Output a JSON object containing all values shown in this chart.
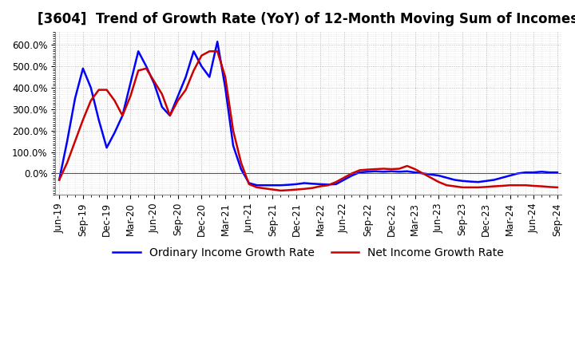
{
  "title": "[3604]  Trend of Growth Rate (YoY) of 12-Month Moving Sum of Incomes",
  "title_fontsize": 12,
  "background_color": "#ffffff",
  "plot_bg_color": "#ffffff",
  "grid_color": "#aaaaaa",
  "x_tick_labels": [
    "Jun-19",
    "Sep-19",
    "Dec-19",
    "Mar-20",
    "Jun-20",
    "Sep-20",
    "Dec-20",
    "Mar-21",
    "Jun-21",
    "Sep-21",
    "Dec-21",
    "Mar-22",
    "Jun-22",
    "Sep-22",
    "Dec-22",
    "Mar-23",
    "Jun-23",
    "Sep-23",
    "Dec-23",
    "Mar-24",
    "Jun-24",
    "Sep-24"
  ],
  "x_tick_positions": [
    0,
    3,
    6,
    9,
    12,
    15,
    18,
    21,
    24,
    27,
    30,
    33,
    36,
    39,
    42,
    45,
    48,
    51,
    54,
    57,
    60,
    63
  ],
  "ordinary_income": [
    -30,
    150,
    350,
    490,
    400,
    250,
    120,
    190,
    270,
    420,
    570,
    500,
    420,
    310,
    270,
    360,
    450,
    570,
    500,
    450,
    615,
    400,
    130,
    20,
    -45,
    -55,
    -55,
    -55,
    -55,
    -53,
    -50,
    -45,
    -48,
    -50,
    -52,
    -50,
    -30,
    -10,
    5,
    8,
    10,
    8,
    10,
    8,
    10,
    5,
    0,
    -5,
    -10,
    -20,
    -30,
    -35,
    -38,
    -40,
    -35,
    -30,
    -20,
    -10,
    0,
    5,
    5,
    8,
    5,
    5
  ],
  "net_income": [
    -30,
    50,
    150,
    250,
    340,
    390,
    390,
    340,
    270,
    360,
    480,
    490,
    430,
    370,
    270,
    340,
    390,
    480,
    550,
    570,
    570,
    450,
    200,
    50,
    -50,
    -65,
    -70,
    -75,
    -80,
    -78,
    -75,
    -72,
    -68,
    -60,
    -55,
    -40,
    -20,
    0,
    15,
    18,
    20,
    22,
    20,
    22,
    35,
    20,
    0,
    -20,
    -40,
    -55,
    -60,
    -65,
    -65,
    -65,
    -63,
    -60,
    -58,
    -55,
    -55,
    -55,
    -58,
    -60,
    -63,
    -65
  ],
  "ordinary_color": "#0000ff",
  "net_color": "#cc0000",
  "ordinary_label": "Ordinary Income Growth Rate",
  "net_label": "Net Income Growth Rate",
  "ylim": [
    -100,
    660
  ],
  "yticks": [
    0,
    100,
    200,
    300,
    400,
    500,
    600
  ],
  "ytick_labels": [
    "0.0%",
    "100.0%",
    "200.0%",
    "300.0%",
    "400.0%",
    "500.0%",
    "600.0%"
  ],
  "linewidth": 1.8,
  "legend_fontsize": 10,
  "tick_fontsize": 8.5
}
